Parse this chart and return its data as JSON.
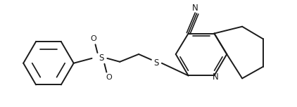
{
  "background_color": "#ffffff",
  "line_color": "#1a1a1a",
  "line_width": 1.4,
  "figsize": [
    4.22,
    1.52
  ],
  "dpi": 100,
  "xlim": [
    0,
    422
  ],
  "ylim": [
    0,
    152
  ]
}
